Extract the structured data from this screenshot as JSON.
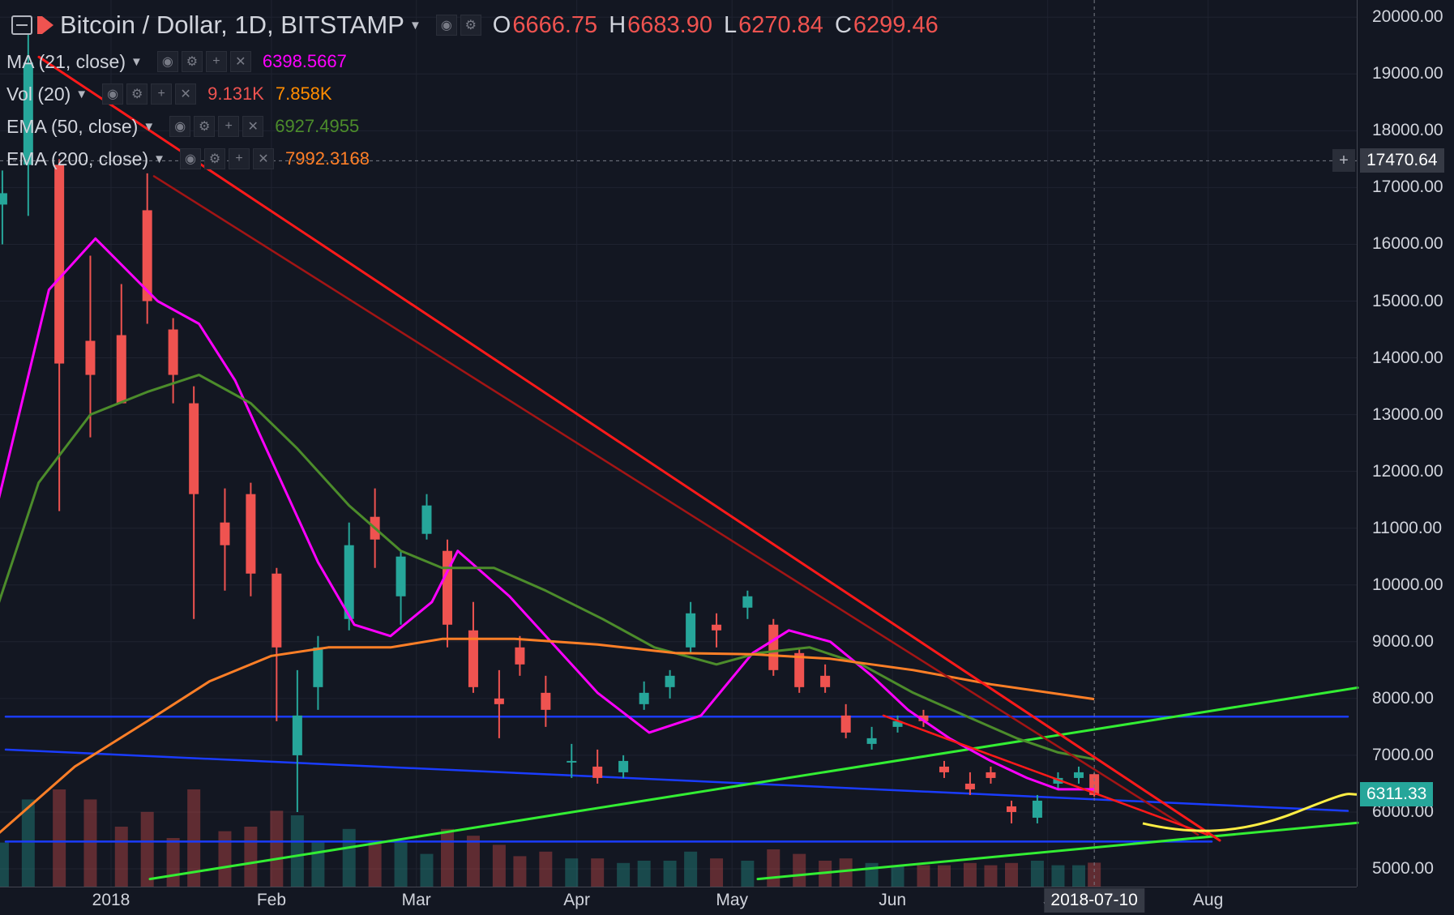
{
  "header": {
    "title": "Bitcoin / Dollar, 1D, BITSTAMP",
    "ohlc": {
      "o_label": "O",
      "o": "6666.75",
      "h_label": "H",
      "h": "6683.90",
      "l_label": "L",
      "l": "6270.84",
      "c_label": "C",
      "c": "6299.46"
    }
  },
  "indicators": [
    {
      "label": "MA (21, close)",
      "values": [
        "6398.5667"
      ],
      "colors": [
        "#ff00ff"
      ]
    },
    {
      "label": "Vol (20)",
      "values": [
        "9.131K",
        "7.858K"
      ],
      "colors": [
        "#ef5350",
        "#ff8c00"
      ]
    },
    {
      "label": "EMA (50, close)",
      "values": [
        "6927.4955"
      ],
      "colors": [
        "#4c8c2b"
      ]
    },
    {
      "label": "EMA (200, close)",
      "values": [
        "7992.3168"
      ],
      "colors": [
        "#ff7f27"
      ]
    }
  ],
  "price_axis": {
    "ticks": [
      "20000.00",
      "19000.00",
      "18000.00",
      "17000.00",
      "16000.00",
      "15000.00",
      "14000.00",
      "13000.00",
      "12000.00",
      "11000.00",
      "10000.00",
      "9000.00",
      "8000.00",
      "7000.00",
      "6000.00",
      "5000.00"
    ],
    "crosshair_label": "17470.64",
    "last_price_label": "6311.33"
  },
  "time_axis": {
    "labels": [
      "2018",
      "Feb",
      "Mar",
      "Apr",
      "May",
      "Jun",
      "J",
      "Aug"
    ],
    "crosshair_label": "2018-07-10"
  },
  "colors": {
    "background": "#131722",
    "up": "#26a69a",
    "down": "#ef5350",
    "ma21": "#ff00ff",
    "ema50": "#4c8c2b",
    "ema200": "#ff7f27",
    "trend_red": "#ff1a1a",
    "trend_dark": "#a31515",
    "support_blue": "#1a3cff",
    "support_green": "#33ee33",
    "projection": "#ffee44"
  },
  "chart_data": {
    "type": "candlestick",
    "title": "Bitcoin / Dollar, 1D, BITSTAMP",
    "ylim": [
      4700,
      20300
    ],
    "x_start": "2017-12-10",
    "x_end": "2018-08-18",
    "ohlc_weekly": [
      {
        "date": "2017-12-11",
        "o": 16700,
        "h": 17300,
        "l": 16000,
        "c": 16900
      },
      {
        "date": "2017-12-16",
        "o": 17400,
        "h": 19700,
        "l": 16500,
        "c": 19200
      },
      {
        "date": "2017-12-22",
        "o": 17400,
        "h": 17500,
        "l": 11300,
        "c": 13900
      },
      {
        "date": "2017-12-28",
        "o": 14300,
        "h": 15800,
        "l": 12600,
        "c": 13700
      },
      {
        "date": "2018-01-03",
        "o": 14400,
        "h": 15300,
        "l": 13300,
        "c": 13200
      },
      {
        "date": "2018-01-08",
        "o": 16600,
        "h": 17250,
        "l": 14600,
        "c": 15000
      },
      {
        "date": "2018-01-13",
        "o": 14500,
        "h": 14700,
        "l": 13200,
        "c": 13700
      },
      {
        "date": "2018-01-17",
        "o": 13200,
        "h": 13500,
        "l": 9400,
        "c": 11600
      },
      {
        "date": "2018-01-23",
        "o": 11100,
        "h": 11700,
        "l": 9900,
        "c": 10700
      },
      {
        "date": "2018-01-28",
        "o": 11600,
        "h": 11800,
        "l": 9800,
        "c": 10200
      },
      {
        "date": "2018-02-02",
        "o": 10200,
        "h": 10300,
        "l": 7600,
        "c": 8900
      },
      {
        "date": "2018-02-06",
        "o": 7000,
        "h": 8500,
        "l": 6000,
        "c": 7700
      },
      {
        "date": "2018-02-10",
        "o": 8200,
        "h": 9100,
        "l": 7800,
        "c": 8900
      },
      {
        "date": "2018-02-16",
        "o": 9400,
        "h": 11100,
        "l": 9200,
        "c": 10700
      },
      {
        "date": "2018-02-21",
        "o": 11200,
        "h": 11700,
        "l": 10300,
        "c": 10800
      },
      {
        "date": "2018-02-26",
        "o": 9800,
        "h": 10600,
        "l": 9300,
        "c": 10500
      },
      {
        "date": "2018-03-03",
        "o": 10900,
        "h": 11600,
        "l": 10800,
        "c": 11400
      },
      {
        "date": "2018-03-07",
        "o": 10600,
        "h": 10800,
        "l": 8900,
        "c": 9300
      },
      {
        "date": "2018-03-12",
        "o": 9200,
        "h": 9700,
        "l": 8100,
        "c": 8200
      },
      {
        "date": "2018-03-17",
        "o": 8000,
        "h": 8500,
        "l": 7300,
        "c": 7900
      },
      {
        "date": "2018-03-21",
        "o": 8900,
        "h": 9100,
        "l": 8400,
        "c": 8600
      },
      {
        "date": "2018-03-26",
        "o": 8100,
        "h": 8400,
        "l": 7500,
        "c": 7800
      },
      {
        "date": "2018-03-31",
        "o": 6900,
        "h": 7200,
        "l": 6600,
        "c": 6900
      },
      {
        "date": "2018-04-05",
        "o": 6800,
        "h": 7100,
        "l": 6500,
        "c": 6600
      },
      {
        "date": "2018-04-10",
        "o": 6700,
        "h": 7000,
        "l": 6600,
        "c": 6900
      },
      {
        "date": "2018-04-14",
        "o": 7900,
        "h": 8300,
        "l": 7800,
        "c": 8100
      },
      {
        "date": "2018-04-19",
        "o": 8200,
        "h": 8500,
        "l": 8000,
        "c": 8400
      },
      {
        "date": "2018-04-23",
        "o": 8900,
        "h": 9700,
        "l": 8800,
        "c": 9500
      },
      {
        "date": "2018-04-28",
        "o": 9300,
        "h": 9500,
        "l": 8900,
        "c": 9200
      },
      {
        "date": "2018-05-04",
        "o": 9600,
        "h": 9900,
        "l": 9400,
        "c": 9800
      },
      {
        "date": "2018-05-09",
        "o": 9300,
        "h": 9400,
        "l": 8400,
        "c": 8500
      },
      {
        "date": "2018-05-14",
        "o": 8800,
        "h": 8900,
        "l": 8100,
        "c": 8200
      },
      {
        "date": "2018-05-19",
        "o": 8400,
        "h": 8600,
        "l": 8100,
        "c": 8200
      },
      {
        "date": "2018-05-23",
        "o": 7700,
        "h": 7900,
        "l": 7300,
        "c": 7400
      },
      {
        "date": "2018-05-28",
        "o": 7200,
        "h": 7500,
        "l": 7100,
        "c": 7300
      },
      {
        "date": "2018-06-02",
        "o": 7500,
        "h": 7700,
        "l": 7400,
        "c": 7600
      },
      {
        "date": "2018-06-07",
        "o": 7700,
        "h": 7800,
        "l": 7500,
        "c": 7600
      },
      {
        "date": "2018-06-11",
        "o": 6800,
        "h": 6900,
        "l": 6600,
        "c": 6700
      },
      {
        "date": "2018-06-16",
        "o": 6500,
        "h": 6700,
        "l": 6300,
        "c": 6400
      },
      {
        "date": "2018-06-20",
        "o": 6700,
        "h": 6800,
        "l": 6500,
        "c": 6600
      },
      {
        "date": "2018-06-24",
        "o": 6100,
        "h": 6200,
        "l": 5800,
        "c": 6000
      },
      {
        "date": "2018-06-29",
        "o": 5900,
        "h": 6300,
        "l": 5800,
        "c": 6200
      },
      {
        "date": "2018-07-03",
        "o": 6500,
        "h": 6700,
        "l": 6400,
        "c": 6600
      },
      {
        "date": "2018-07-07",
        "o": 6600,
        "h": 6800,
        "l": 6500,
        "c": 6700
      },
      {
        "date": "2018-07-10",
        "o": 6666.75,
        "h": 6683.9,
        "l": 6270.84,
        "c": 6299.46
      }
    ],
    "series": [
      {
        "name": "MA (21, close)",
        "points": [
          [
            "2017-12-10",
            11400
          ],
          [
            "2017-12-20",
            15200
          ],
          [
            "2017-12-29",
            16100
          ],
          [
            "2018-01-10",
            15000
          ],
          [
            "2018-01-18",
            14600
          ],
          [
            "2018-01-25",
            13600
          ],
          [
            "2018-02-02",
            12000
          ],
          [
            "2018-02-10",
            10400
          ],
          [
            "2018-02-17",
            9300
          ],
          [
            "2018-02-24",
            9100
          ],
          [
            "2018-03-04",
            9700
          ],
          [
            "2018-03-09",
            10600
          ],
          [
            "2018-03-19",
            9800
          ],
          [
            "2018-03-27",
            9000
          ],
          [
            "2018-04-05",
            8100
          ],
          [
            "2018-04-15",
            7400
          ],
          [
            "2018-04-25",
            7700
          ],
          [
            "2018-05-05",
            8800
          ],
          [
            "2018-05-12",
            9200
          ],
          [
            "2018-05-20",
            9000
          ],
          [
            "2018-05-28",
            8400
          ],
          [
            "2018-06-04",
            7800
          ],
          [
            "2018-06-12",
            7300
          ],
          [
            "2018-06-20",
            6900
          ],
          [
            "2018-06-27",
            6600
          ],
          [
            "2018-07-03",
            6400
          ],
          [
            "2018-07-10",
            6400
          ]
        ]
      },
      {
        "name": "EMA (50, close)",
        "points": [
          [
            "2017-12-10",
            9600
          ],
          [
            "2017-12-18",
            11800
          ],
          [
            "2017-12-28",
            13000
          ],
          [
            "2018-01-08",
            13400
          ],
          [
            "2018-01-18",
            13700
          ],
          [
            "2018-01-28",
            13200
          ],
          [
            "2018-02-06",
            12400
          ],
          [
            "2018-02-16",
            11400
          ],
          [
            "2018-02-26",
            10600
          ],
          [
            "2018-03-06",
            10300
          ],
          [
            "2018-03-16",
            10300
          ],
          [
            "2018-03-26",
            9900
          ],
          [
            "2018-04-06",
            9400
          ],
          [
            "2018-04-16",
            8900
          ],
          [
            "2018-04-28",
            8600
          ],
          [
            "2018-05-06",
            8800
          ],
          [
            "2018-05-16",
            8900
          ],
          [
            "2018-05-26",
            8600
          ],
          [
            "2018-06-05",
            8100
          ],
          [
            "2018-06-15",
            7700
          ],
          [
            "2018-06-25",
            7300
          ],
          [
            "2018-07-03",
            7050
          ],
          [
            "2018-07-10",
            6930
          ]
        ]
      },
      {
        "name": "EMA (200, close)",
        "points": [
          [
            "2017-12-10",
            5600
          ],
          [
            "2017-12-25",
            6800
          ],
          [
            "2018-01-08",
            7600
          ],
          [
            "2018-01-20",
            8300
          ],
          [
            "2018-02-01",
            8750
          ],
          [
            "2018-02-12",
            8900
          ],
          [
            "2018-02-24",
            8900
          ],
          [
            "2018-03-06",
            9050
          ],
          [
            "2018-03-20",
            9050
          ],
          [
            "2018-04-05",
            8950
          ],
          [
            "2018-04-20",
            8800
          ],
          [
            "2018-05-05",
            8780
          ],
          [
            "2018-05-20",
            8700
          ],
          [
            "2018-06-05",
            8500
          ],
          [
            "2018-06-20",
            8250
          ],
          [
            "2018-07-10",
            7990
          ]
        ]
      }
    ]
  }
}
